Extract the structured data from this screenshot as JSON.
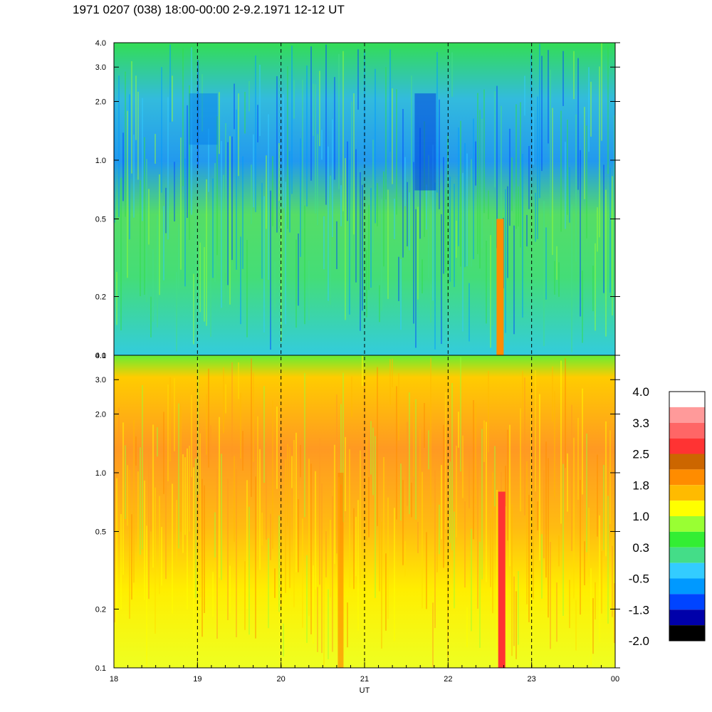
{
  "title": "1971 0207 (038) 18:00-00:00 2-9.2.1971  12-12 UT",
  "chart_data": {
    "type": "heatmap",
    "title": "1971 0207 (038) 18:00-00:00 2-9.2.1971  12-12 UT",
    "xlabel": "UT",
    "x_ticks": [
      "18",
      "19",
      "20",
      "21",
      "22",
      "23",
      "00"
    ],
    "x_range_hours": [
      18,
      24
    ],
    "y_scale": "log",
    "y_range": [
      0.1,
      4.0
    ],
    "y_ticks": [
      "4.0",
      "3.0",
      "2.0",
      "1.0",
      "0.5",
      "0.2",
      "0.1"
    ],
    "panels": [
      {
        "name": "upper",
        "dominant_levels": [
          -0.5,
          0.3,
          1.0
        ],
        "notes": "blue/dark-blue bands around 1.0-2.0 near 19 and 21.7 UT; orange column near 22.6 UT below 0.5"
      },
      {
        "name": "lower",
        "dominant_levels": [
          1.0,
          1.8,
          2.5
        ],
        "notes": "yellow-orange field, green near 4.0; red column near 22.6 UT"
      }
    ],
    "colorbar": {
      "labels": [
        "4.0",
        "3.3",
        "2.5",
        "1.8",
        "1.0",
        "0.3",
        "-0.5",
        "-1.3",
        "-2.0"
      ],
      "colors": [
        "#ffffff",
        "#ff9a9a",
        "#ff6666",
        "#ff3333",
        "#cc6600",
        "#ff8c00",
        "#ffbb00",
        "#ffff00",
        "#99ff33",
        "#33ee33",
        "#44dd88",
        "#33ccff",
        "#0099ff",
        "#0044ff",
        "#0000aa",
        "#000000"
      ]
    },
    "grid": "dashed vertical lines at each hour"
  }
}
